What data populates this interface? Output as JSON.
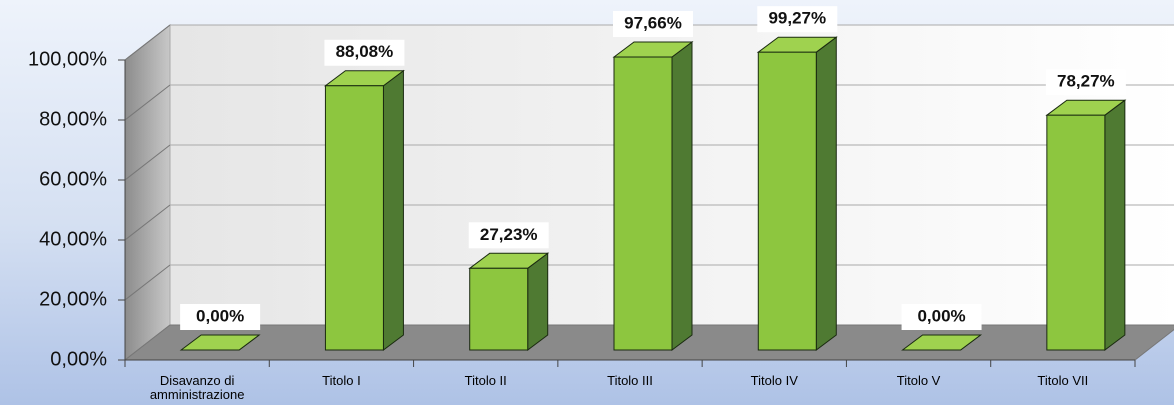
{
  "chart_data": {
    "type": "bar3d",
    "categories": [
      "Disavanzo di amministrazione",
      "Titolo I",
      "Titolo II",
      "Titolo III",
      "Titolo IV",
      "Titolo V",
      "Titolo VII"
    ],
    "values": [
      0,
      88.08,
      27.23,
      97.66,
      99.27,
      0,
      78.27
    ],
    "value_labels": [
      "0,00%",
      "88,08%",
      "27,23%",
      "97,66%",
      "99,27%",
      "0,00%",
      "78,27%"
    ],
    "color": "#8dc63f",
    "ylim": [
      0,
      100
    ],
    "yticks": [
      {
        "value": 0,
        "label": "0,00%"
      },
      {
        "value": 20,
        "label": "20,00%"
      },
      {
        "value": 40,
        "label": "40,00%"
      },
      {
        "value": 60,
        "label": "60,00%"
      },
      {
        "value": 80,
        "label": "80,00%"
      },
      {
        "value": 100,
        "label": "100,00%"
      }
    ],
    "grid": true
  }
}
